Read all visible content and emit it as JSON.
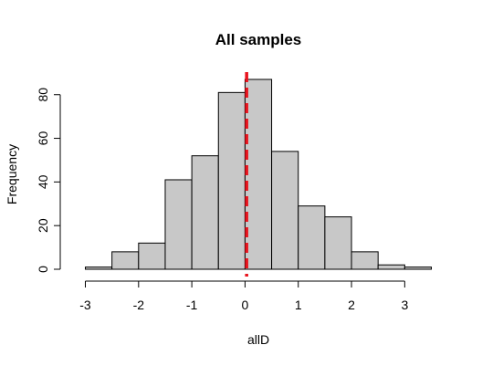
{
  "chart_data": {
    "type": "bar",
    "title": "All samples",
    "xlabel": "allD",
    "ylabel": "Frequency",
    "bin_edges": [
      -3,
      -2.5,
      -2,
      -1.5,
      -1,
      -0.5,
      0,
      0.5,
      1,
      1.5,
      2,
      2.5,
      3,
      3.5
    ],
    "values": [
      1,
      8,
      12,
      41,
      52,
      81,
      87,
      54,
      29,
      24,
      8,
      2,
      1
    ],
    "xlim": [
      -3,
      3.5
    ],
    "ylim": [
      0,
      87
    ],
    "xticks": [
      -3,
      -2,
      -1,
      0,
      1,
      2,
      3
    ],
    "yticks": [
      0,
      20,
      40,
      60,
      80
    ],
    "xtick_labels": [
      "-3",
      "-2",
      "-1",
      "0",
      "1",
      "2",
      "3"
    ],
    "ytick_labels": [
      "0",
      "20",
      "40",
      "60",
      "80"
    ],
    "bar_fill": "#c8c8c8",
    "bar_stroke": "#000000",
    "reference_line": {
      "x": 0.03,
      "color": "#e8141e",
      "style": "dashed"
    },
    "grid": false
  }
}
